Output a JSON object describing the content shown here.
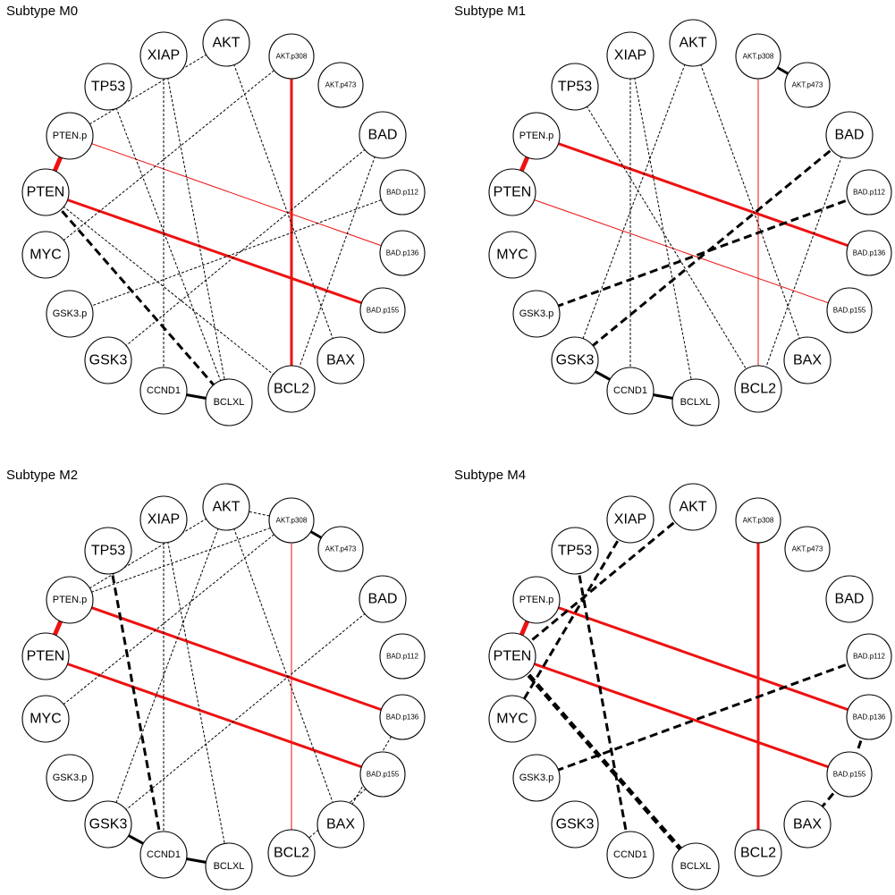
{
  "panels": [
    {
      "title": "Subtype M0",
      "edges": [
        {
          "a": "PTEN.p",
          "b": "PTEN",
          "color": "red",
          "weight": "heavy",
          "dashed": false
        },
        {
          "a": "PTEN.p",
          "b": "BAD.p136",
          "color": "red",
          "weight": "thin",
          "dashed": false
        },
        {
          "a": "PTEN",
          "b": "BAD.p155",
          "color": "red",
          "weight": "bold",
          "dashed": false
        },
        {
          "a": "AKT.p308",
          "b": "BCL2",
          "color": "red",
          "weight": "bold",
          "dashed": false
        },
        {
          "a": "PTEN",
          "b": "BCLXL",
          "color": "black",
          "weight": "bold",
          "dashed": true
        },
        {
          "a": "CCND1",
          "b": "BCLXL",
          "color": "black",
          "weight": "bold",
          "dashed": false
        },
        {
          "a": "XIAP",
          "b": "CCND1",
          "color": "black",
          "weight": "thin",
          "dashed": true
        },
        {
          "a": "XIAP",
          "b": "BCLXL",
          "color": "black",
          "weight": "thin",
          "dashed": true
        },
        {
          "a": "TP53",
          "b": "BCLXL",
          "color": "black",
          "weight": "thin",
          "dashed": true
        },
        {
          "a": "AKT",
          "b": "BAX",
          "color": "black",
          "weight": "thin",
          "dashed": true
        },
        {
          "a": "AKT",
          "b": "PTEN.p",
          "color": "black",
          "weight": "thin",
          "dashed": true
        },
        {
          "a": "AKT.p308",
          "b": "MYC",
          "color": "black",
          "weight": "thin",
          "dashed": true
        },
        {
          "a": "BAD",
          "b": "GSK3",
          "color": "black",
          "weight": "thin",
          "dashed": true
        },
        {
          "a": "BAD",
          "b": "BCL2",
          "color": "black",
          "weight": "thin",
          "dashed": true
        },
        {
          "a": "BAD.p112",
          "b": "GSK3.p",
          "color": "black",
          "weight": "thin",
          "dashed": true
        },
        {
          "a": "PTEN",
          "b": "BCL2",
          "color": "black",
          "weight": "thin",
          "dashed": true
        }
      ]
    },
    {
      "title": "Subtype M1",
      "edges": [
        {
          "a": "PTEN.p",
          "b": "PTEN",
          "color": "red",
          "weight": "heavy",
          "dashed": false
        },
        {
          "a": "PTEN.p",
          "b": "BAD.p136",
          "color": "red",
          "weight": "bold",
          "dashed": false
        },
        {
          "a": "PTEN",
          "b": "BAD.p155",
          "color": "red",
          "weight": "thin",
          "dashed": false
        },
        {
          "a": "AKT.p308",
          "b": "BCL2",
          "color": "red",
          "weight": "thin",
          "dashed": false
        },
        {
          "a": "AKT.p308",
          "b": "AKT.p473",
          "color": "black",
          "weight": "bold",
          "dashed": false
        },
        {
          "a": "GSK3",
          "b": "CCND1",
          "color": "black",
          "weight": "bold",
          "dashed": false
        },
        {
          "a": "CCND1",
          "b": "BCLXL",
          "color": "black",
          "weight": "bold",
          "dashed": false
        },
        {
          "a": "BAD",
          "b": "GSK3",
          "color": "black",
          "weight": "bold",
          "dashed": true
        },
        {
          "a": "BAD.p112",
          "b": "GSK3.p",
          "color": "black",
          "weight": "bold",
          "dashed": true
        },
        {
          "a": "XIAP",
          "b": "CCND1",
          "color": "black",
          "weight": "thin",
          "dashed": true
        },
        {
          "a": "XIAP",
          "b": "BCLXL",
          "color": "black",
          "weight": "thin",
          "dashed": true
        },
        {
          "a": "TP53",
          "b": "BCL2",
          "color": "black",
          "weight": "thin",
          "dashed": true
        },
        {
          "a": "AKT",
          "b": "GSK3",
          "color": "black",
          "weight": "thin",
          "dashed": true
        },
        {
          "a": "AKT",
          "b": "BAX",
          "color": "black",
          "weight": "thin",
          "dashed": true
        },
        {
          "a": "BAD",
          "b": "BCL2",
          "color": "black",
          "weight": "thin",
          "dashed": true
        }
      ]
    },
    {
      "title": "Subtype M2",
      "edges": [
        {
          "a": "PTEN.p",
          "b": "PTEN",
          "color": "red",
          "weight": "heavy",
          "dashed": false
        },
        {
          "a": "PTEN.p",
          "b": "BAD.p136",
          "color": "red",
          "weight": "bold",
          "dashed": false
        },
        {
          "a": "PTEN",
          "b": "BAD.p155",
          "color": "red",
          "weight": "bold",
          "dashed": false
        },
        {
          "a": "AKT.p308",
          "b": "BCL2",
          "color": "red",
          "weight": "thin",
          "dashed": false
        },
        {
          "a": "AKT.p308",
          "b": "AKT.p473",
          "color": "black",
          "weight": "bold",
          "dashed": false
        },
        {
          "a": "GSK3",
          "b": "CCND1",
          "color": "black",
          "weight": "bold",
          "dashed": false
        },
        {
          "a": "CCND1",
          "b": "BCLXL",
          "color": "black",
          "weight": "bold",
          "dashed": false
        },
        {
          "a": "TP53",
          "b": "CCND1",
          "color": "black",
          "weight": "bold",
          "dashed": true
        },
        {
          "a": "XIAP",
          "b": "CCND1",
          "color": "black",
          "weight": "thin",
          "dashed": true
        },
        {
          "a": "XIAP",
          "b": "BCLXL",
          "color": "black",
          "weight": "thin",
          "dashed": true
        },
        {
          "a": "AKT",
          "b": "PTEN.p",
          "color": "black",
          "weight": "thin",
          "dashed": true
        },
        {
          "a": "AKT",
          "b": "GSK3",
          "color": "black",
          "weight": "thin",
          "dashed": true
        },
        {
          "a": "AKT",
          "b": "BAX",
          "color": "black",
          "weight": "thin",
          "dashed": true
        },
        {
          "a": "AKT.p308",
          "b": "AKT",
          "color": "black",
          "weight": "thin",
          "dashed": true
        },
        {
          "a": "AKT.p308",
          "b": "PTEN.p",
          "color": "black",
          "weight": "thin",
          "dashed": true
        },
        {
          "a": "AKT.p308",
          "b": "MYC",
          "color": "black",
          "weight": "thin",
          "dashed": true
        },
        {
          "a": "BAD",
          "b": "GSK3",
          "color": "black",
          "weight": "thin",
          "dashed": true
        },
        {
          "a": "BAD.p136",
          "b": "BAX",
          "color": "black",
          "weight": "thin",
          "dashed": true
        },
        {
          "a": "BAD.p155",
          "b": "BCL2",
          "color": "black",
          "weight": "thin",
          "dashed": true
        }
      ]
    },
    {
      "title": "Subtype M4",
      "edges": [
        {
          "a": "PTEN.p",
          "b": "PTEN",
          "color": "red",
          "weight": "heavy",
          "dashed": false
        },
        {
          "a": "PTEN.p",
          "b": "BAD.p136",
          "color": "red",
          "weight": "bold",
          "dashed": false
        },
        {
          "a": "PTEN",
          "b": "BAD.p155",
          "color": "red",
          "weight": "bold",
          "dashed": false
        },
        {
          "a": "AKT.p308",
          "b": "BCL2",
          "color": "red",
          "weight": "bold",
          "dashed": false
        },
        {
          "a": "PTEN",
          "b": "BCLXL",
          "color": "black",
          "weight": "heavy",
          "dashed": true
        },
        {
          "a": "TP53",
          "b": "CCND1",
          "color": "black",
          "weight": "bold",
          "dashed": true
        },
        {
          "a": "AKT",
          "b": "PTEN",
          "color": "black",
          "weight": "bold",
          "dashed": true
        },
        {
          "a": "XIAP",
          "b": "MYC",
          "color": "black",
          "weight": "bold",
          "dashed": true
        },
        {
          "a": "BAD.p112",
          "b": "GSK3.p",
          "color": "black",
          "weight": "bold",
          "dashed": true
        },
        {
          "a": "BAD.p155",
          "b": "BAX",
          "color": "black",
          "weight": "bold",
          "dashed": true
        },
        {
          "a": "BAD.p136",
          "b": "BAD.p155",
          "color": "black",
          "weight": "bold",
          "dashed": true
        }
      ]
    }
  ],
  "nodes": [
    {
      "id": "AKT.p308",
      "label": "AKT.p308",
      "size": "small"
    },
    {
      "id": "AKT.p473",
      "label": "AKT.p473",
      "size": "small"
    },
    {
      "id": "BAD",
      "label": "BAD",
      "size": "large"
    },
    {
      "id": "BAD.p112",
      "label": "BAD.p112",
      "size": "small"
    },
    {
      "id": "BAD.p136",
      "label": "BAD.p136",
      "size": "small"
    },
    {
      "id": "BAD.p155",
      "label": "BAD.p155",
      "size": "small"
    },
    {
      "id": "BAX",
      "label": "BAX",
      "size": "large"
    },
    {
      "id": "BCL2",
      "label": "BCL2",
      "size": "large"
    },
    {
      "id": "BCLXL",
      "label": "BCLXL",
      "size": "medium"
    },
    {
      "id": "CCND1",
      "label": "CCND1",
      "size": "medium"
    },
    {
      "id": "GSK3",
      "label": "GSK3",
      "size": "large"
    },
    {
      "id": "GSK3.p",
      "label": "GSK3.p",
      "size": "medium"
    },
    {
      "id": "MYC",
      "label": "MYC",
      "size": "large"
    },
    {
      "id": "PTEN",
      "label": "PTEN",
      "size": "large"
    },
    {
      "id": "PTEN.p",
      "label": "PTEN.p",
      "size": "medium"
    },
    {
      "id": "TP53",
      "label": "TP53",
      "size": "large"
    },
    {
      "id": "XIAP",
      "label": "XIAP",
      "size": "large"
    },
    {
      "id": "AKT",
      "label": "AKT",
      "size": "large"
    }
  ],
  "colors": {
    "red": "#ee1111",
    "black": "#000000",
    "node_fill": "#ffffff",
    "node_stroke": "#000000"
  }
}
